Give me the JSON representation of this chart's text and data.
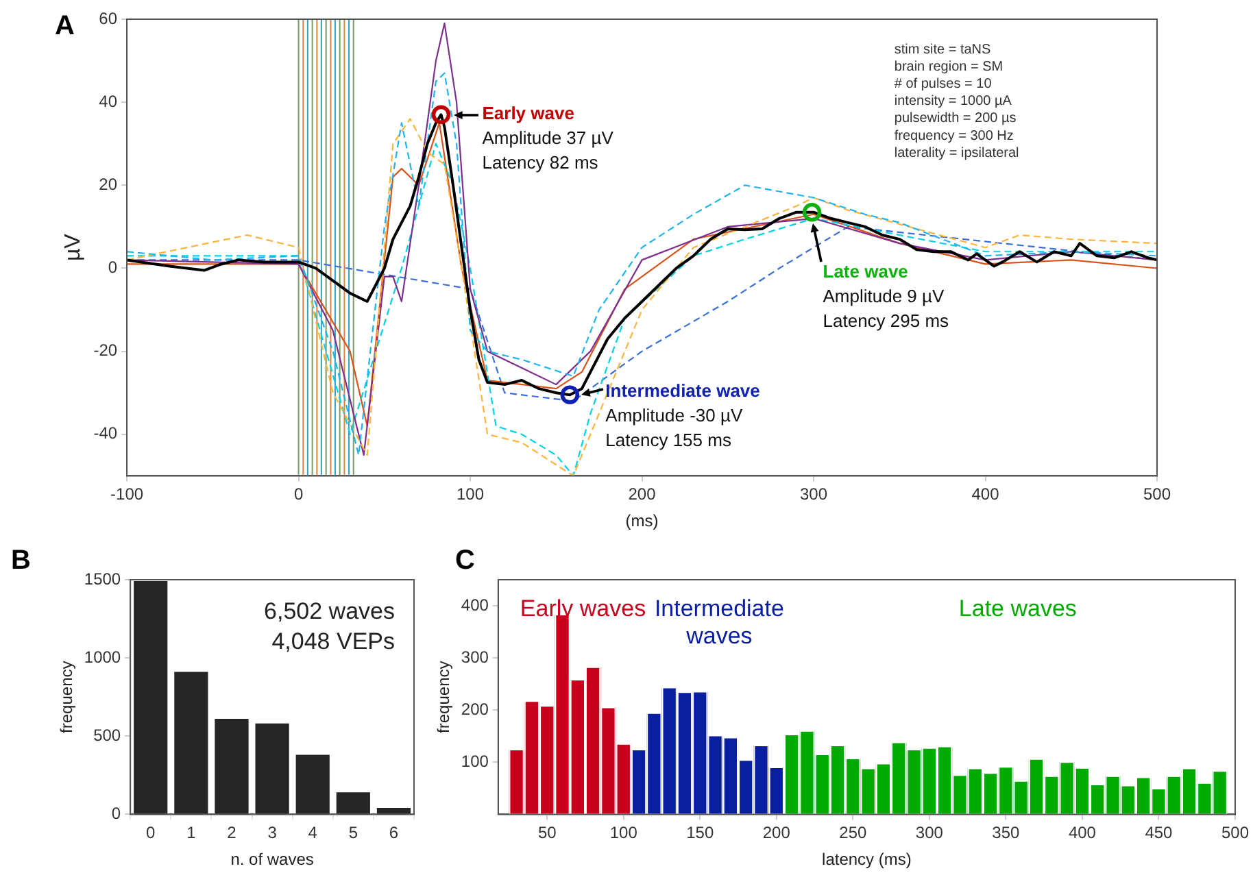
{
  "chart_data": [
    {
      "type": "line",
      "title": "A",
      "xlabel": "(ms)",
      "ylabel": "µV",
      "xlim": [
        -100,
        500
      ],
      "ylim": [
        -50,
        60
      ],
      "xticks": [
        -100,
        0,
        100,
        200,
        300,
        400,
        500
      ],
      "yticks": [
        -40,
        -20,
        0,
        20,
        40,
        60
      ],
      "grid": false,
      "legend": false,
      "ref_lines": [
        {
          "axis": "x",
          "value": 0,
          "color": "#7a9a6a"
        },
        {
          "axis": "x",
          "value": 2.7,
          "color": "#e08040"
        },
        {
          "axis": "x",
          "value": 5.3,
          "color": "#3aa0c0"
        },
        {
          "axis": "x",
          "value": 8,
          "color": "#7a9a6a"
        },
        {
          "axis": "x",
          "value": 10.7,
          "color": "#e08040"
        },
        {
          "axis": "x",
          "value": 13.3,
          "color": "#3aa0c0"
        },
        {
          "axis": "x",
          "value": 16,
          "color": "#7a9a6a"
        },
        {
          "axis": "x",
          "value": 18.7,
          "color": "#e08040"
        },
        {
          "axis": "x",
          "value": 21.3,
          "color": "#3aa0c0"
        },
        {
          "axis": "x",
          "value": 24,
          "color": "#7a9a6a"
        },
        {
          "axis": "x",
          "value": 26.7,
          "color": "#e08040"
        },
        {
          "axis": "x",
          "value": 29.3,
          "color": "#3aa0c0"
        },
        {
          "axis": "x",
          "value": 32,
          "color": "#7a9a6a"
        }
      ],
      "annotations": [
        "stim site = taNS\nbrain region = SM\n# of pulses = 10\nintensity = 1000 µA\npulsewidth = 200 µs\nfrequency = 300 Hz\nlaterality = ipsilateral",
        {
          "text": "Early wave\nAmplitude 37 µV\nLatency 82 ms",
          "x": 83,
          "y": 37
        },
        {
          "text": "Intermediate wave\nAmplitude -30 µV\nLatency 155 ms",
          "x": 158,
          "y": -30.5
        },
        {
          "text": "Late wave\nAmplitude 9 µV\nLatency 295 ms",
          "x": 299,
          "y": 13.5
        }
      ],
      "series": [
        {
          "type": "line",
          "color": "#1eb4f0",
          "line_style": "dashed",
          "x": [
            -100,
            -50,
            0,
            20,
            35,
            50,
            60,
            70,
            80,
            85,
            92,
            100,
            110,
            130,
            160,
            175,
            200,
            230,
            260,
            300,
            330,
            350,
            400,
            450,
            500
          ],
          "values": [
            4,
            2,
            3,
            -20,
            -45,
            10,
            35,
            15,
            45,
            47,
            30,
            -15,
            -20,
            -22,
            -26,
            -10,
            5,
            13,
            20,
            17,
            13,
            11,
            3,
            4,
            3
          ]
        },
        {
          "type": "line",
          "color": "#ffb43c",
          "line_style": "dashed",
          "x": [
            -100,
            -30,
            0,
            20,
            40,
            55,
            65,
            75,
            85,
            95,
            110,
            130,
            160,
            175,
            200,
            230,
            260,
            290,
            300,
            320,
            400,
            420,
            450,
            500
          ],
          "values": [
            2,
            8,
            5,
            -30,
            -45,
            30,
            36,
            28,
            25,
            0,
            -40,
            -42,
            -50,
            -35,
            -10,
            5,
            10,
            15,
            17,
            14,
            5,
            8,
            7,
            6
          ]
        },
        {
          "type": "line",
          "color": "#7e2f8e",
          "line_style": "solid",
          "x": [
            -100,
            0,
            20,
            38,
            50,
            55,
            60,
            70,
            80,
            85,
            92,
            100,
            110,
            150,
            170,
            200,
            250,
            300,
            350,
            400,
            450,
            500
          ],
          "values": [
            2,
            1,
            -15,
            -45,
            -2,
            -2,
            -8,
            20,
            50,
            59,
            40,
            -5,
            -20,
            -28,
            -20,
            2,
            10,
            12,
            6,
            2,
            4,
            2
          ]
        },
        {
          "type": "line",
          "color": "#00d2e6",
          "line_style": "dashed",
          "x": [
            -100,
            0,
            30,
            60,
            80,
            90,
            100,
            115,
            130,
            150,
            160,
            170,
            190,
            230,
            260,
            300,
            400,
            500
          ],
          "values": [
            3,
            3,
            -40,
            0,
            30,
            20,
            0,
            -38,
            -40,
            -45,
            -50,
            -35,
            -12,
            3,
            7,
            12,
            4,
            4
          ]
        },
        {
          "type": "line",
          "color": "#d95319",
          "line_style": "solid",
          "x": [
            -100,
            0,
            30,
            40,
            55,
            60,
            70,
            82,
            95,
            110,
            150,
            165,
            190,
            230,
            300,
            350,
            400,
            450,
            500
          ],
          "values": [
            1,
            1,
            -20,
            -38,
            22,
            24,
            20,
            35,
            0,
            -27,
            -29,
            -25,
            -5,
            7,
            13,
            6,
            1,
            2,
            0
          ]
        },
        {
          "type": "line",
          "color": "#3a6fd8",
          "line_style": "dashed",
          "x": [
            -100,
            0,
            100,
            120,
            160,
            200,
            250,
            280,
            300,
            320,
            500
          ],
          "values": [
            2,
            2,
            -5,
            -30,
            -32,
            -20,
            -8,
            0,
            5,
            10,
            2
          ]
        },
        {
          "type": "line",
          "color": "#000000",
          "line_style": "solid",
          "x": [
            -100,
            -75,
            -55,
            -45,
            -35,
            -20,
            0,
            10,
            20,
            30,
            40,
            50,
            55,
            60,
            65,
            70,
            75,
            80,
            83,
            85,
            90,
            95,
            100,
            105,
            110,
            120,
            130,
            140,
            150,
            158,
            165,
            170,
            180,
            190,
            200,
            210,
            220,
            230,
            240,
            250,
            260,
            270,
            280,
            290,
            300,
            310,
            320,
            330,
            340,
            350,
            360,
            370,
            380,
            390,
            395,
            405,
            410,
            420,
            430,
            440,
            450,
            455,
            465,
            475,
            485,
            495,
            500
          ],
          "values": [
            2,
            0.5,
            -0.5,
            1,
            2,
            1.5,
            1.5,
            0,
            -3,
            -6,
            -8,
            0,
            7,
            11,
            15,
            22,
            30,
            35,
            37,
            34,
            20,
            5,
            -10,
            -22,
            -27.5,
            -28,
            -27,
            -29,
            -30,
            -30.5,
            -29,
            -25,
            -17,
            -12,
            -8,
            -4,
            0,
            3,
            7,
            9.5,
            9.3,
            9.5,
            12,
            13.5,
            13.5,
            12,
            11,
            10,
            8,
            7,
            4.5,
            4,
            4,
            2,
            3.5,
            0.5,
            1.5,
            4,
            1.5,
            4,
            3,
            6,
            3,
            2.5,
            4,
            2.5,
            2
          ]
        },
        {
          "type": "scatter",
          "marker": "circle",
          "x": [
            83,
            158,
            299
          ],
          "values": [
            37,
            -30.5,
            13.5
          ],
          "colors": [
            "#c00000",
            "#1020b0",
            "#10b010"
          ]
        }
      ]
    },
    {
      "type": "bar",
      "title": "B",
      "xlabel": "n. of waves",
      "ylabel": "frequency",
      "categories": [
        "0",
        "1",
        "2",
        "3",
        "4",
        "5",
        "6"
      ],
      "values": [
        1500,
        920,
        620,
        590,
        390,
        150,
        50
      ],
      "color": "#262626",
      "ylim": [
        0,
        1500
      ],
      "yticks": [
        0,
        500,
        1000,
        1500
      ],
      "grid": false,
      "legend": false,
      "annotations": [
        "6,502 waves\n4,048 VEPs"
      ]
    },
    {
      "type": "histogram",
      "title": "C",
      "xlabel": "latency (ms)",
      "ylabel": "frequency",
      "bins": [
        25,
        35,
        45,
        55,
        65,
        75,
        85,
        95,
        105,
        115,
        125,
        135,
        145,
        155,
        165,
        175,
        185,
        195,
        205,
        215,
        225,
        235,
        245,
        255,
        265,
        275,
        285,
        295,
        305,
        315,
        325,
        335,
        345,
        355,
        365,
        375,
        385,
        395,
        405,
        415,
        425,
        435,
        445,
        455,
        465,
        475,
        485,
        495
      ],
      "values": [
        124,
        217,
        208,
        383,
        258,
        282,
        205,
        135,
        124,
        194,
        243,
        234,
        235,
        151,
        147,
        104,
        132,
        90,
        153,
        160,
        115,
        132,
        107,
        88,
        97,
        138,
        124,
        127,
        130,
        75,
        88,
        79,
        91,
        64,
        106,
        73,
        100,
        89,
        57,
        73,
        55,
        71,
        49,
        73,
        88,
        60,
        83
      ],
      "colors": [
        "#c8001e",
        "#c8001e",
        "#c8001e",
        "#c8001e",
        "#c8001e",
        "#c8001e",
        "#c8001e",
        "#c8001e",
        "#0a1ea0",
        "#0a1ea0",
        "#0a1ea0",
        "#0a1ea0",
        "#0a1ea0",
        "#0a1ea0",
        "#0a1ea0",
        "#0a1ea0",
        "#0a1ea0",
        "#0a1ea0",
        "#00aa00",
        "#00aa00",
        "#00aa00",
        "#00aa00",
        "#00aa00",
        "#00aa00",
        "#00aa00",
        "#00aa00",
        "#00aa00",
        "#00aa00",
        "#00aa00",
        "#00aa00",
        "#00aa00",
        "#00aa00",
        "#00aa00",
        "#00aa00",
        "#00aa00",
        "#00aa00",
        "#00aa00",
        "#00aa00",
        "#00aa00",
        "#00aa00",
        "#00aa00",
        "#00aa00",
        "#00aa00",
        "#00aa00",
        "#00aa00",
        "#00aa00",
        "#00aa00"
      ],
      "xlim": [
        18,
        500
      ],
      "xticks": [
        50,
        100,
        150,
        200,
        250,
        300,
        350,
        400,
        450,
        500
      ],
      "ylim": [
        0,
        450
      ],
      "yticks": [
        100,
        200,
        300,
        400
      ],
      "grid": false,
      "legend": false,
      "annotations": [
        "Early waves",
        "Intermediate\nwaves",
        "Late waves"
      ]
    }
  ]
}
